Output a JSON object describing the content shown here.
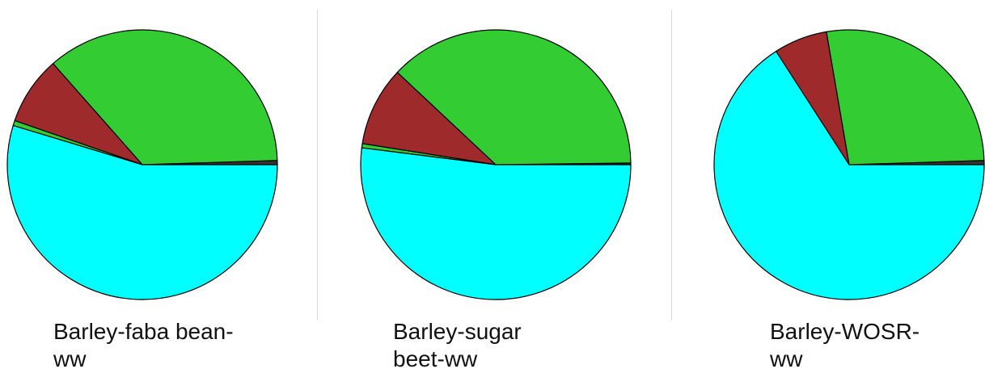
{
  "chart_data": [
    {
      "type": "pie",
      "label": "Barley-faba bean-ww",
      "caption_lines": [
        "Barley-faba bean-",
        "ww"
      ],
      "slices": [
        {
          "color": "#333333",
          "value": 0.5
        },
        {
          "color": "#33cc33",
          "value": 36.0
        },
        {
          "color": "#9e2a2b",
          "value": 8.2
        },
        {
          "color": "#33cc33",
          "value": 0.6
        },
        {
          "color": "#00ffff",
          "value": 54.7
        }
      ]
    },
    {
      "type": "pie",
      "label": "Barley-sugar beet-ww",
      "caption_lines": [
        "Barley-sugar",
        "beet-ww"
      ],
      "slices": [
        {
          "color": "#333333",
          "value": 0.2
        },
        {
          "color": "#33cc33",
          "value": 37.8
        },
        {
          "color": "#9e2a2b",
          "value": 9.5
        },
        {
          "color": "#33cc33",
          "value": 0.5
        },
        {
          "color": "#00ffff",
          "value": 52.0
        }
      ]
    },
    {
      "type": "pie",
      "label": "Barley-WOSR-ww",
      "caption_lines": [
        "Barley-WOSR-",
        "ww"
      ],
      "slices": [
        {
          "color": "#333333",
          "value": 0.5
        },
        {
          "color": "#33cc33",
          "value": 27.2
        },
        {
          "color": "#9e2a2b",
          "value": 6.4
        },
        {
          "color": "#00ffff",
          "value": 65.9
        }
      ]
    }
  ]
}
